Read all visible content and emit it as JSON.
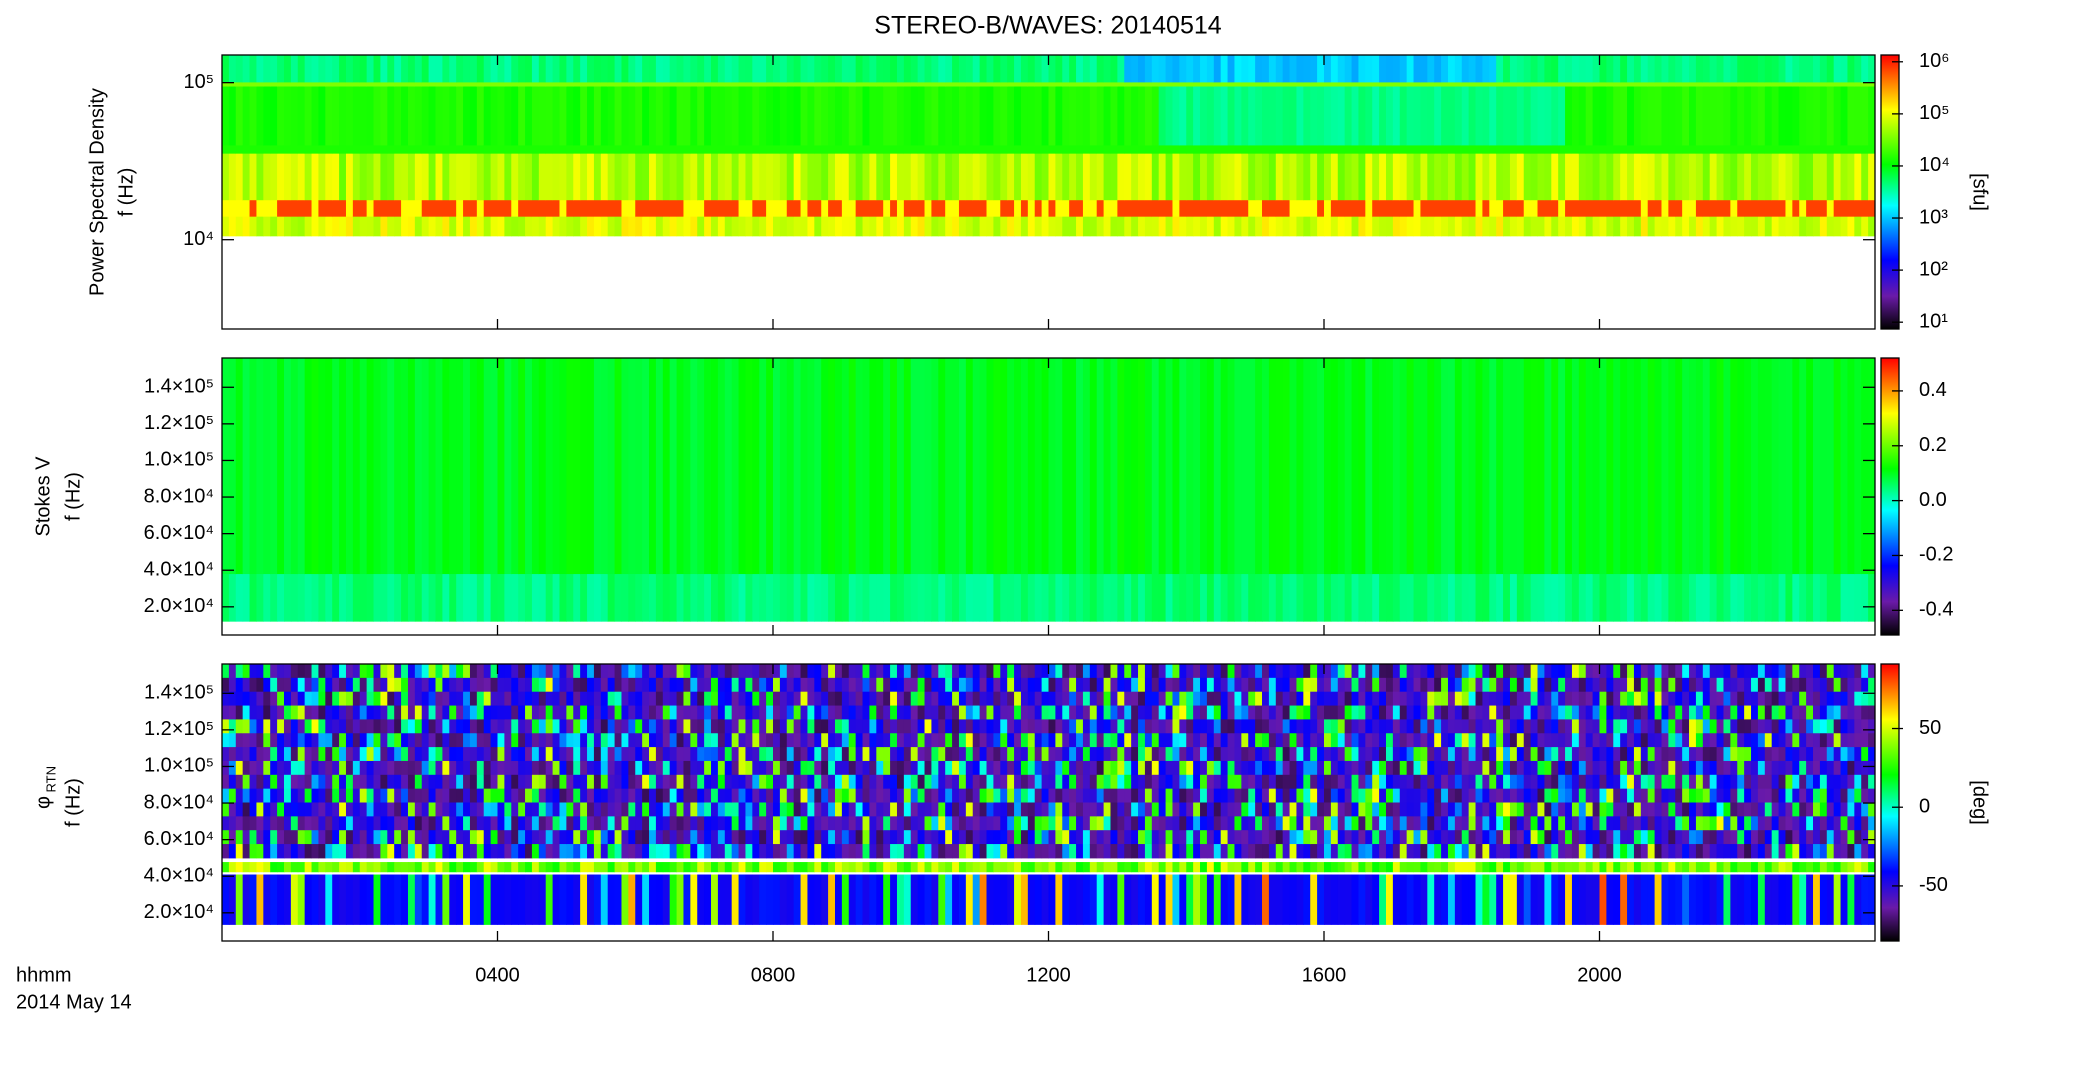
{
  "chart_data": {
    "type": "spectrogram",
    "title": "STEREO-B/WAVES: 20140514",
    "xlim": [
      0,
      24
    ],
    "xticks": [
      {
        "value": 4,
        "label": "0400"
      },
      {
        "value": 8,
        "label": "0800"
      },
      {
        "value": 12,
        "label": "1200"
      },
      {
        "value": 16,
        "label": "1600"
      },
      {
        "value": 20,
        "label": "2000"
      }
    ],
    "xlabel": "hhmm",
    "date": "2014 May 14",
    "panels": [
      {
        "ylabel": "Power Spectral Density",
        "flabel": "f (Hz)",
        "yscale": "log",
        "ylim": [
          2700,
          150000
        ],
        "yticks": [
          {
            "value": 10000,
            "label": "10⁴"
          },
          {
            "value": 100000,
            "label": "10⁵"
          }
        ],
        "colorbar": {
          "scale": "log",
          "zlim": [
            7.4,
            1350000
          ],
          "ticks": [
            {
              "value": 10,
              "label": "10¹"
            },
            {
              "value": 100,
              "label": "10²"
            },
            {
              "value": 1000,
              "label": "10³"
            },
            {
              "value": 10000,
              "label": "10⁴"
            },
            {
              "value": 100000,
              "label": "10⁵"
            },
            {
              "value": 1000000,
              "label": "10⁶"
            }
          ],
          "label": "[sfu]"
        }
      },
      {
        "ylabel": "Stokes V",
        "flabel": "f (Hz)",
        "yscale": "linear",
        "ylim": [
          4600,
          156000
        ],
        "yticks": [
          {
            "value": 20000,
            "label": "2.0×10⁴"
          },
          {
            "value": 40000,
            "label": "4.0×10⁴"
          },
          {
            "value": 60000,
            "label": "6.0×10⁴"
          },
          {
            "value": 80000,
            "label": "8.0×10⁴"
          },
          {
            "value": 100000,
            "label": "1.0×10⁵"
          },
          {
            "value": 120000,
            "label": "1.2×10⁵"
          },
          {
            "value": 140000,
            "label": "1.4×10⁵"
          }
        ],
        "colorbar": {
          "scale": "linear",
          "zlim": [
            -0.49,
            0.52
          ],
          "ticks": [
            -0.4,
            -0.2,
            {
              "value": 0,
              "label": "0.0"
            },
            0.2,
            0.4
          ]
        }
      },
      {
        "ylabel": "φ",
        "ylabel_sub": "RTN",
        "flabel": "f (Hz)",
        "yscale": "linear",
        "ylim": [
          4600,
          156000
        ],
        "yticks": [
          {
            "value": 20000,
            "label": "2.0×10⁴"
          },
          {
            "value": 40000,
            "label": "4.0×10⁴"
          },
          {
            "value": 60000,
            "label": "6.0×10⁴"
          },
          {
            "value": 80000,
            "label": "8.0×10⁴"
          },
          {
            "value": 100000,
            "label": "1.0×10⁵"
          },
          {
            "value": 120000,
            "label": "1.2×10⁵"
          },
          {
            "value": 140000,
            "label": "1.4×10⁵"
          }
        ],
        "colorbar": {
          "scale": "linear",
          "zlim": [
            -85,
            91
          ],
          "ticks": [
            -50,
            0,
            50
          ],
          "label": "[deg]"
        }
      }
    ]
  }
}
